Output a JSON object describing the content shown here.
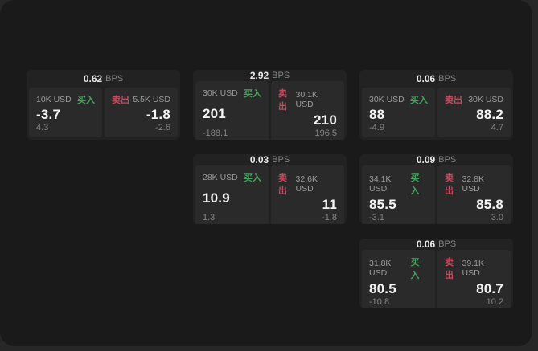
{
  "labels": {
    "bps_unit": "BPS",
    "buy": "买入",
    "sell": "卖出"
  },
  "colors": {
    "buy_green": "#3fa75c",
    "sell_red": "#c9485e",
    "panel_bg": "#1a1a1a",
    "card_bg": "#222222",
    "tile_bg": "#2a2a2a"
  },
  "cards": [
    {
      "col": 1,
      "row": 1,
      "bps": "0.62",
      "buy": {
        "amount": "10K USD",
        "value": "-3.7",
        "sub": "4.3"
      },
      "sell": {
        "amount": "5.5K USD",
        "value": "-1.8",
        "sub": "-2.6"
      }
    },
    {
      "col": 2,
      "row": 1,
      "bps": "2.92",
      "buy": {
        "amount": "30K USD",
        "value": "201",
        "sub": "-188.1"
      },
      "sell": {
        "amount": "30.1K USD",
        "value": "210",
        "sub": "196.5"
      }
    },
    {
      "col": 3,
      "row": 1,
      "bps": "0.06",
      "buy": {
        "amount": "30K USD",
        "value": "88",
        "sub": "-4.9"
      },
      "sell": {
        "amount": "30K USD",
        "value": "88.2",
        "sub": "4.7"
      }
    },
    {
      "col": 2,
      "row": 2,
      "bps": "0.03",
      "buy": {
        "amount": "28K USD",
        "value": "10.9",
        "sub": "1.3"
      },
      "sell": {
        "amount": "32.6K USD",
        "value": "11",
        "sub": "-1.8"
      }
    },
    {
      "col": 3,
      "row": 2,
      "bps": "0.09",
      "buy": {
        "amount": "34.1K USD",
        "value": "85.5",
        "sub": "-3.1"
      },
      "sell": {
        "amount": "32.8K USD",
        "value": "85.8",
        "sub": "3.0"
      }
    },
    {
      "col": 3,
      "row": 3,
      "bps": "0.06",
      "buy": {
        "amount": "31.8K USD",
        "value": "80.5",
        "sub": "-10.8"
      },
      "sell": {
        "amount": "39.1K USD",
        "value": "80.7",
        "sub": "10.2"
      }
    }
  ]
}
